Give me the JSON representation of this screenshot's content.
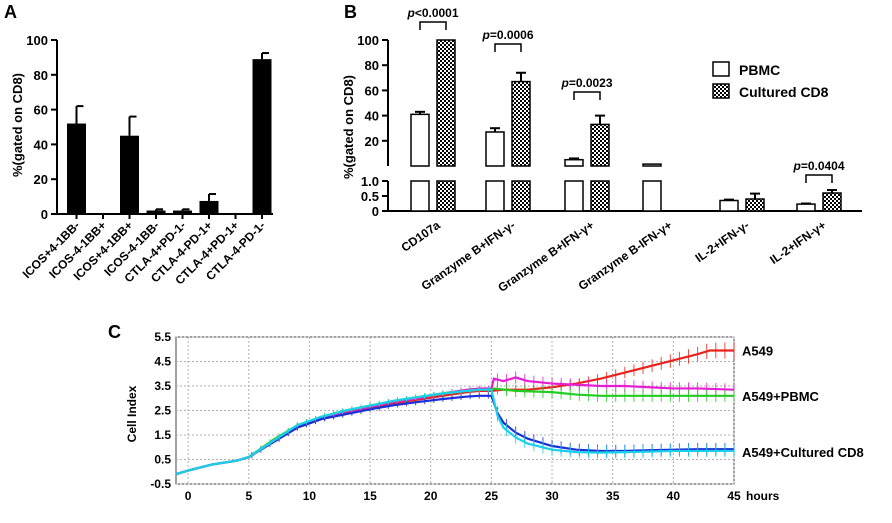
{
  "chart_data": [
    {
      "panel": "A",
      "type": "bar",
      "ylabel": "%(gated on CD8)",
      "ylim": [
        0,
        100
      ],
      "yticks": [
        0,
        20,
        40,
        60,
        80,
        100
      ],
      "categories": [
        "ICOS+4-1BB-",
        "ICOS-4-1BB+",
        "ICOS+4-1BB+",
        "ICOS-4-1BB-",
        "CTLA-4+PD-1-",
        "CTLA-4-PD-1+",
        "CTLA-4+PD-1+",
        "CTLA-4-PD-1-"
      ],
      "values": [
        52,
        0.5,
        45,
        2,
        2,
        7.5,
        0.5,
        89
      ],
      "errors": [
        10,
        0,
        11,
        0.7,
        0.7,
        4,
        0,
        3.5
      ]
    },
    {
      "panel": "B",
      "type": "bar",
      "ylabel": "%(gated on CD8)",
      "y_axis_break": true,
      "upper_segment": {
        "ylim": [
          0,
          100
        ],
        "yticks": [
          20,
          40,
          60,
          80,
          100
        ]
      },
      "lower_segment": {
        "ylim": [
          0,
          1.0
        ],
        "yticks": [
          0,
          0.5,
          1.0
        ]
      },
      "categories": [
        "CD107a",
        "Granzyme B+IFN-γ-",
        "Granzyme B+IFN-γ+",
        "Granzyme B-IFN-γ+",
        "IL-2+IFN-γ-",
        "IL-2+IFN-γ+"
      ],
      "series": [
        {
          "name": "PBMC",
          "values": [
            41,
            27,
            5,
            1.5,
            0.35,
            0.23
          ],
          "errors": [
            2,
            3,
            1,
            0,
            0.03,
            0.02
          ]
        },
        {
          "name": "Cultured CD8",
          "values": [
            100,
            67,
            33,
            null,
            0.4,
            0.6
          ],
          "errors": [
            0,
            7,
            7,
            null,
            0.18,
            0.1
          ]
        }
      ],
      "annotations": [
        {
          "label_prefix": "p",
          "label": "<0.0001",
          "category": "CD107a"
        },
        {
          "label_prefix": "p",
          "label": "=0.0006",
          "category": "Granzyme B+IFN-γ-"
        },
        {
          "label_prefix": "p",
          "label": "=0.0023",
          "category": "Granzyme B+IFN-γ+"
        },
        {
          "label_prefix": "p",
          "label": "=0.0404",
          "category": "IL-2+IFN-γ+"
        }
      ],
      "legend_position": "top-right"
    },
    {
      "panel": "C",
      "type": "line",
      "ylabel": "Cell Index",
      "xlabel": "hours",
      "xlim": [
        -1,
        45
      ],
      "ylim": [
        -0.5,
        5.5
      ],
      "xticks": [
        0,
        5,
        10,
        15,
        20,
        25,
        30,
        35,
        40,
        45
      ],
      "yticks": [
        -0.5,
        0.5,
        1.5,
        2.5,
        3.5,
        4.5,
        5.5
      ],
      "grid": true,
      "series": [
        {
          "name": "A549",
          "color": "#e8221c",
          "x": [
            -1,
            0,
            2,
            4,
            5,
            7,
            9,
            11,
            13,
            15,
            17,
            19,
            21,
            23,
            24,
            25,
            26,
            28,
            30,
            32,
            34,
            36,
            38,
            40,
            42,
            43,
            45
          ],
          "y": [
            -0.1,
            0.05,
            0.3,
            0.45,
            0.6,
            1.2,
            1.8,
            2.15,
            2.4,
            2.6,
            2.8,
            2.95,
            3.1,
            3.25,
            3.3,
            3.3,
            3.35,
            3.35,
            3.45,
            3.6,
            3.8,
            4.05,
            4.3,
            4.55,
            4.8,
            4.95,
            4.95
          ]
        },
        {
          "name": "A549+PBMC",
          "color": "#e41fd2",
          "x": [
            -1,
            0,
            2,
            4,
            5,
            7,
            9,
            11,
            13,
            15,
            17,
            19,
            21,
            23,
            24,
            25,
            25.2,
            26,
            27,
            28,
            30,
            32,
            34,
            36,
            38,
            40,
            42,
            45
          ],
          "y": [
            -0.1,
            0.05,
            0.3,
            0.45,
            0.6,
            1.25,
            1.85,
            2.2,
            2.45,
            2.65,
            2.85,
            3.0,
            3.2,
            3.35,
            3.4,
            3.4,
            3.8,
            3.7,
            3.85,
            3.7,
            3.6,
            3.55,
            3.5,
            3.5,
            3.45,
            3.4,
            3.4,
            3.35
          ]
        },
        {
          "name": "A549+PBMC",
          "color": "#22cc22",
          "x": [
            -1,
            0,
            2,
            4,
            5,
            7,
            9,
            11,
            13,
            15,
            17,
            19,
            21,
            23,
            24,
            25,
            25.2,
            27,
            30,
            32,
            34,
            36,
            38,
            40,
            42,
            45
          ],
          "y": [
            -0.1,
            0.05,
            0.3,
            0.45,
            0.6,
            1.3,
            1.9,
            2.25,
            2.5,
            2.7,
            2.9,
            3.05,
            3.2,
            3.3,
            3.35,
            3.35,
            3.4,
            3.3,
            3.25,
            3.15,
            3.1,
            3.1,
            3.1,
            3.1,
            3.1,
            3.1
          ]
        },
        {
          "name": "A549+Cultured CD8",
          "color": "#1a2fd8",
          "x": [
            -1,
            0,
            2,
            4,
            5,
            7,
            9,
            11,
            13,
            15,
            17,
            19,
            21,
            23,
            24,
            25,
            25.5,
            26,
            27,
            28,
            30,
            32,
            34,
            36,
            38,
            40,
            42,
            45
          ],
          "y": [
            -0.1,
            0.05,
            0.3,
            0.45,
            0.6,
            1.2,
            1.8,
            2.15,
            2.35,
            2.55,
            2.72,
            2.85,
            2.97,
            3.07,
            3.1,
            3.1,
            2.4,
            2.0,
            1.6,
            1.35,
            1.05,
            0.9,
            0.85,
            0.85,
            0.88,
            0.9,
            0.92,
            0.92
          ]
        },
        {
          "name": "A549+Cultured CD8",
          "color": "#1ad0e8",
          "x": [
            -1,
            0,
            2,
            4,
            5,
            7,
            9,
            11,
            13,
            15,
            17,
            19,
            21,
            23,
            24,
            25,
            25.5,
            26,
            27,
            28,
            30,
            32,
            34,
            36,
            38,
            40,
            42,
            45
          ],
          "y": [
            -0.1,
            0.05,
            0.3,
            0.45,
            0.6,
            1.25,
            1.9,
            2.25,
            2.5,
            2.7,
            2.9,
            3.05,
            3.2,
            3.3,
            3.35,
            3.35,
            2.3,
            1.8,
            1.4,
            1.15,
            0.9,
            0.8,
            0.78,
            0.8,
            0.82,
            0.85,
            0.85,
            0.85
          ]
        }
      ],
      "series_labels": [
        "A549",
        "A549+PBMC",
        "A549+Cultured  CD8"
      ]
    }
  ],
  "panel_labels": [
    "A",
    "B",
    "C"
  ]
}
